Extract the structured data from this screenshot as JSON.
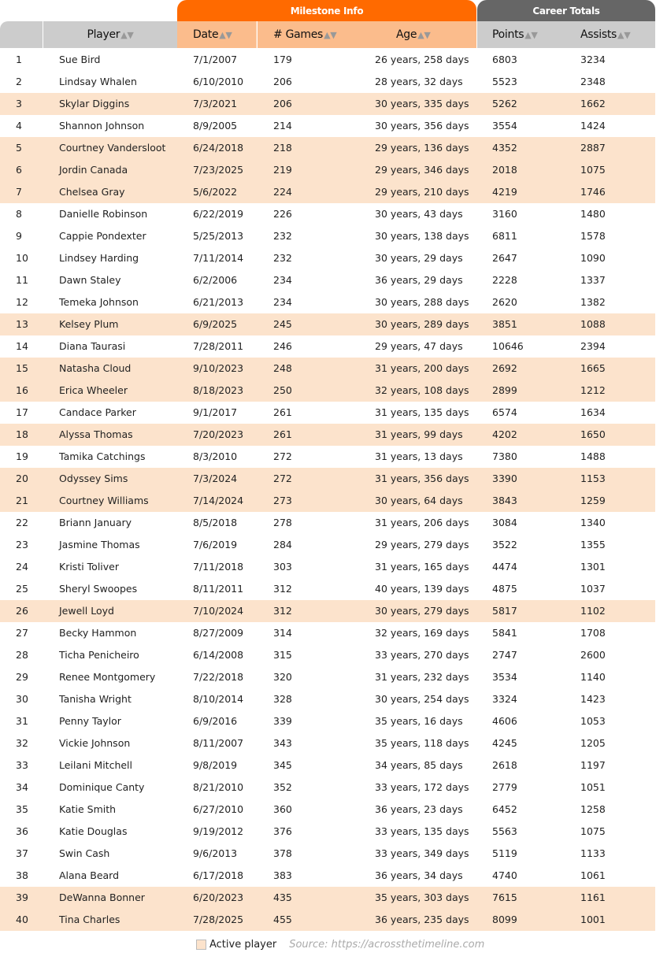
{
  "groups": {
    "milestone": "Milestone Info",
    "career": "Career Totals"
  },
  "columns": [
    "Player",
    "Date",
    "# Games",
    "Age",
    "Points",
    "Assists"
  ],
  "sorted_column": "# Games",
  "colors": {
    "milestone": "#ff6a00",
    "career": "#666666",
    "active_row": "#fce3cc"
  },
  "rows": [
    [
      "1",
      "Sue Bird",
      "7/1/2007",
      "179",
      "26 years, 258 days",
      "6803",
      "3234",
      false
    ],
    [
      "2",
      "Lindsay Whalen",
      "6/10/2010",
      "206",
      "28 years, 32 days",
      "5523",
      "2348",
      false
    ],
    [
      "3",
      "Skylar Diggins",
      "7/3/2021",
      "206",
      "30 years, 335 days",
      "5262",
      "1662",
      true
    ],
    [
      "4",
      "Shannon Johnson",
      "8/9/2005",
      "214",
      "30 years, 356 days",
      "3554",
      "1424",
      false
    ],
    [
      "5",
      "Courtney Vandersloot",
      "6/24/2018",
      "218",
      "29 years, 136 days",
      "4352",
      "2887",
      true
    ],
    [
      "6",
      "Jordin Canada",
      "7/23/2025",
      "219",
      "29 years, 346 days",
      "2018",
      "1075",
      true
    ],
    [
      "7",
      "Chelsea Gray",
      "5/6/2022",
      "224",
      "29 years, 210 days",
      "4219",
      "1746",
      true
    ],
    [
      "8",
      "Danielle Robinson",
      "6/22/2019",
      "226",
      "30 years, 43 days",
      "3160",
      "1480",
      false
    ],
    [
      "9",
      "Cappie Pondexter",
      "5/25/2013",
      "232",
      "30 years, 138 days",
      "6811",
      "1578",
      false
    ],
    [
      "10",
      "Lindsey Harding",
      "7/11/2014",
      "232",
      "30 years, 29 days",
      "2647",
      "1090",
      false
    ],
    [
      "11",
      "Dawn Staley",
      "6/2/2006",
      "234",
      "36 years, 29 days",
      "2228",
      "1337",
      false
    ],
    [
      "12",
      "Temeka Johnson",
      "6/21/2013",
      "234",
      "30 years, 288 days",
      "2620",
      "1382",
      false
    ],
    [
      "13",
      "Kelsey Plum",
      "6/9/2025",
      "245",
      "30 years, 289 days",
      "3851",
      "1088",
      true
    ],
    [
      "14",
      "Diana Taurasi",
      "7/28/2011",
      "246",
      "29 years, 47 days",
      "10646",
      "2394",
      false
    ],
    [
      "15",
      "Natasha Cloud",
      "9/10/2023",
      "248",
      "31 years, 200 days",
      "2692",
      "1665",
      true
    ],
    [
      "16",
      "Erica Wheeler",
      "8/18/2023",
      "250",
      "32 years, 108 days",
      "2899",
      "1212",
      true
    ],
    [
      "17",
      "Candace Parker",
      "9/1/2017",
      "261",
      "31 years, 135 days",
      "6574",
      "1634",
      false
    ],
    [
      "18",
      "Alyssa Thomas",
      "7/20/2023",
      "261",
      "31 years, 99 days",
      "4202",
      "1650",
      true
    ],
    [
      "19",
      "Tamika Catchings",
      "8/3/2010",
      "272",
      "31 years, 13 days",
      "7380",
      "1488",
      false
    ],
    [
      "20",
      "Odyssey Sims",
      "7/3/2024",
      "272",
      "31 years, 356 days",
      "3390",
      "1153",
      true
    ],
    [
      "21",
      "Courtney Williams",
      "7/14/2024",
      "273",
      "30 years, 64 days",
      "3843",
      "1259",
      true
    ],
    [
      "22",
      "Briann January",
      "8/5/2018",
      "278",
      "31 years, 206 days",
      "3084",
      "1340",
      false
    ],
    [
      "23",
      "Jasmine Thomas",
      "7/6/2019",
      "284",
      "29 years, 279 days",
      "3522",
      "1355",
      false
    ],
    [
      "24",
      "Kristi Toliver",
      "7/11/2018",
      "303",
      "31 years, 165 days",
      "4474",
      "1301",
      false
    ],
    [
      "25",
      "Sheryl Swoopes",
      "8/11/2011",
      "312",
      "40 years, 139 days",
      "4875",
      "1037",
      false
    ],
    [
      "26",
      "Jewell Loyd",
      "7/10/2024",
      "312",
      "30 years, 279 days",
      "5817",
      "1102",
      true
    ],
    [
      "27",
      "Becky Hammon",
      "8/27/2009",
      "314",
      "32 years, 169 days",
      "5841",
      "1708",
      false
    ],
    [
      "28",
      "Ticha Penicheiro",
      "6/14/2008",
      "315",
      "33 years, 270 days",
      "2747",
      "2600",
      false
    ],
    [
      "29",
      "Renee Montgomery",
      "7/22/2018",
      "320",
      "31 years, 232 days",
      "3534",
      "1140",
      false
    ],
    [
      "30",
      "Tanisha Wright",
      "8/10/2014",
      "328",
      "30 years, 254 days",
      "3324",
      "1423",
      false
    ],
    [
      "31",
      "Penny Taylor",
      "6/9/2016",
      "339",
      "35 years, 16 days",
      "4606",
      "1053",
      false
    ],
    [
      "32",
      "Vickie Johnson",
      "8/11/2007",
      "343",
      "35 years, 118 days",
      "4245",
      "1205",
      false
    ],
    [
      "33",
      "Leilani Mitchell",
      "9/8/2019",
      "345",
      "34 years, 85 days",
      "2618",
      "1197",
      false
    ],
    [
      "34",
      "Dominique Canty",
      "8/21/2010",
      "352",
      "33 years, 172 days",
      "2779",
      "1051",
      false
    ],
    [
      "35",
      "Katie Smith",
      "6/27/2010",
      "360",
      "36 years, 23 days",
      "6452",
      "1258",
      false
    ],
    [
      "36",
      "Katie Douglas",
      "9/19/2012",
      "376",
      "33 years, 135 days",
      "5563",
      "1075",
      false
    ],
    [
      "37",
      "Swin Cash",
      "9/6/2013",
      "378",
      "33 years, 349 days",
      "5119",
      "1133",
      false
    ],
    [
      "38",
      "Alana Beard",
      "6/17/2018",
      "383",
      "36 years, 34 days",
      "4740",
      "1061",
      false
    ],
    [
      "39",
      "DeWanna Bonner",
      "6/20/2023",
      "435",
      "35 years, 303 days",
      "7615",
      "1161",
      true
    ],
    [
      "40",
      "Tina Charles",
      "7/28/2025",
      "455",
      "36 years, 235 days",
      "8099",
      "1001",
      true
    ]
  ],
  "footer": {
    "legend": "Active player",
    "source": "Source: https://acrossthetimeline.com"
  }
}
